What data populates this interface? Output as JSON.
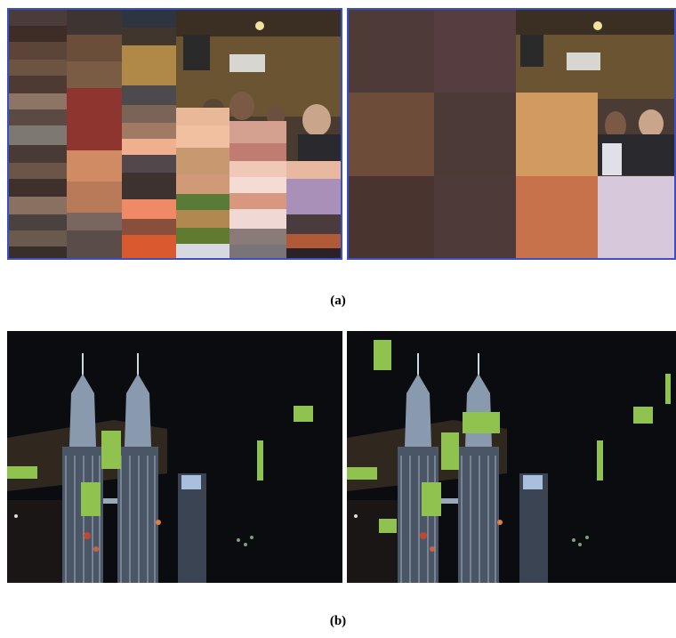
{
  "captions": {
    "a": "(a)",
    "b": "(b)"
  },
  "colors": {
    "frame_border": "#3a4fc8",
    "night_sky": "#0b0c10",
    "overlay_green": "#8fc24e",
    "tower_light": "#cfd9e6"
  }
}
